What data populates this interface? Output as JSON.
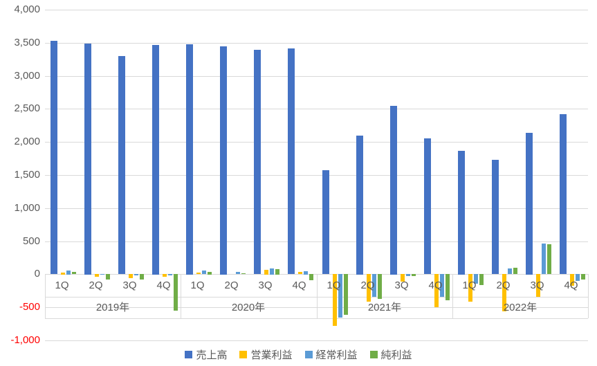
{
  "chart_data": {
    "type": "bar",
    "title": "",
    "year_groups": [
      {
        "label": "2019年",
        "quarters": [
          "1Q",
          "2Q",
          "3Q",
          "4Q"
        ]
      },
      {
        "label": "2020年",
        "quarters": [
          "1Q",
          "2Q",
          "3Q",
          "4Q"
        ]
      },
      {
        "label": "2021年",
        "quarters": [
          "1Q",
          "2Q",
          "3Q",
          "4Q"
        ]
      },
      {
        "label": "2022年",
        "quarters": [
          "1Q",
          "2Q",
          "3Q",
          "4Q"
        ]
      }
    ],
    "series": [
      {
        "name": "売上高",
        "color": "#4472C4",
        "values": [
          3530,
          3490,
          3300,
          3470,
          3480,
          3450,
          3390,
          3410,
          1570,
          2100,
          2550,
          2050,
          1870,
          1730,
          2140,
          2420
        ]
      },
      {
        "name": "営業利益",
        "color": "#FFC000",
        "values": [
          30,
          -40,
          -60,
          -40,
          20,
          0,
          70,
          35,
          -780,
          -420,
          -120,
          -500,
          -420,
          -560,
          -340,
          -180
        ]
      },
      {
        "name": "経常利益",
        "color": "#5B9BD5",
        "values": [
          60,
          -15,
          -20,
          -20,
          55,
          35,
          90,
          50,
          -660,
          -350,
          -30,
          -340,
          -150,
          85,
          460,
          -100
        ]
      },
      {
        "name": "純利益",
        "color": "#70AD47",
        "values": [
          35,
          -80,
          -80,
          -550,
          40,
          10,
          80,
          -90,
          -620,
          -380,
          -30,
          -400,
          -170,
          95,
          450,
          -80
        ]
      }
    ],
    "ylim": [
      -1000,
      4000
    ],
    "ytick_step": 500,
    "yticks": [
      "4,000",
      "3,500",
      "3,000",
      "2,500",
      "2,000",
      "1,500",
      "1,000",
      "500",
      "0",
      "-500",
      "-1,000"
    ],
    "grid": true,
    "legend_position": "bottom"
  },
  "axis_style": {
    "tick_color": "#595959",
    "negative_tick_color": "#FF0000",
    "gridline_color": "#D9D9D9"
  }
}
